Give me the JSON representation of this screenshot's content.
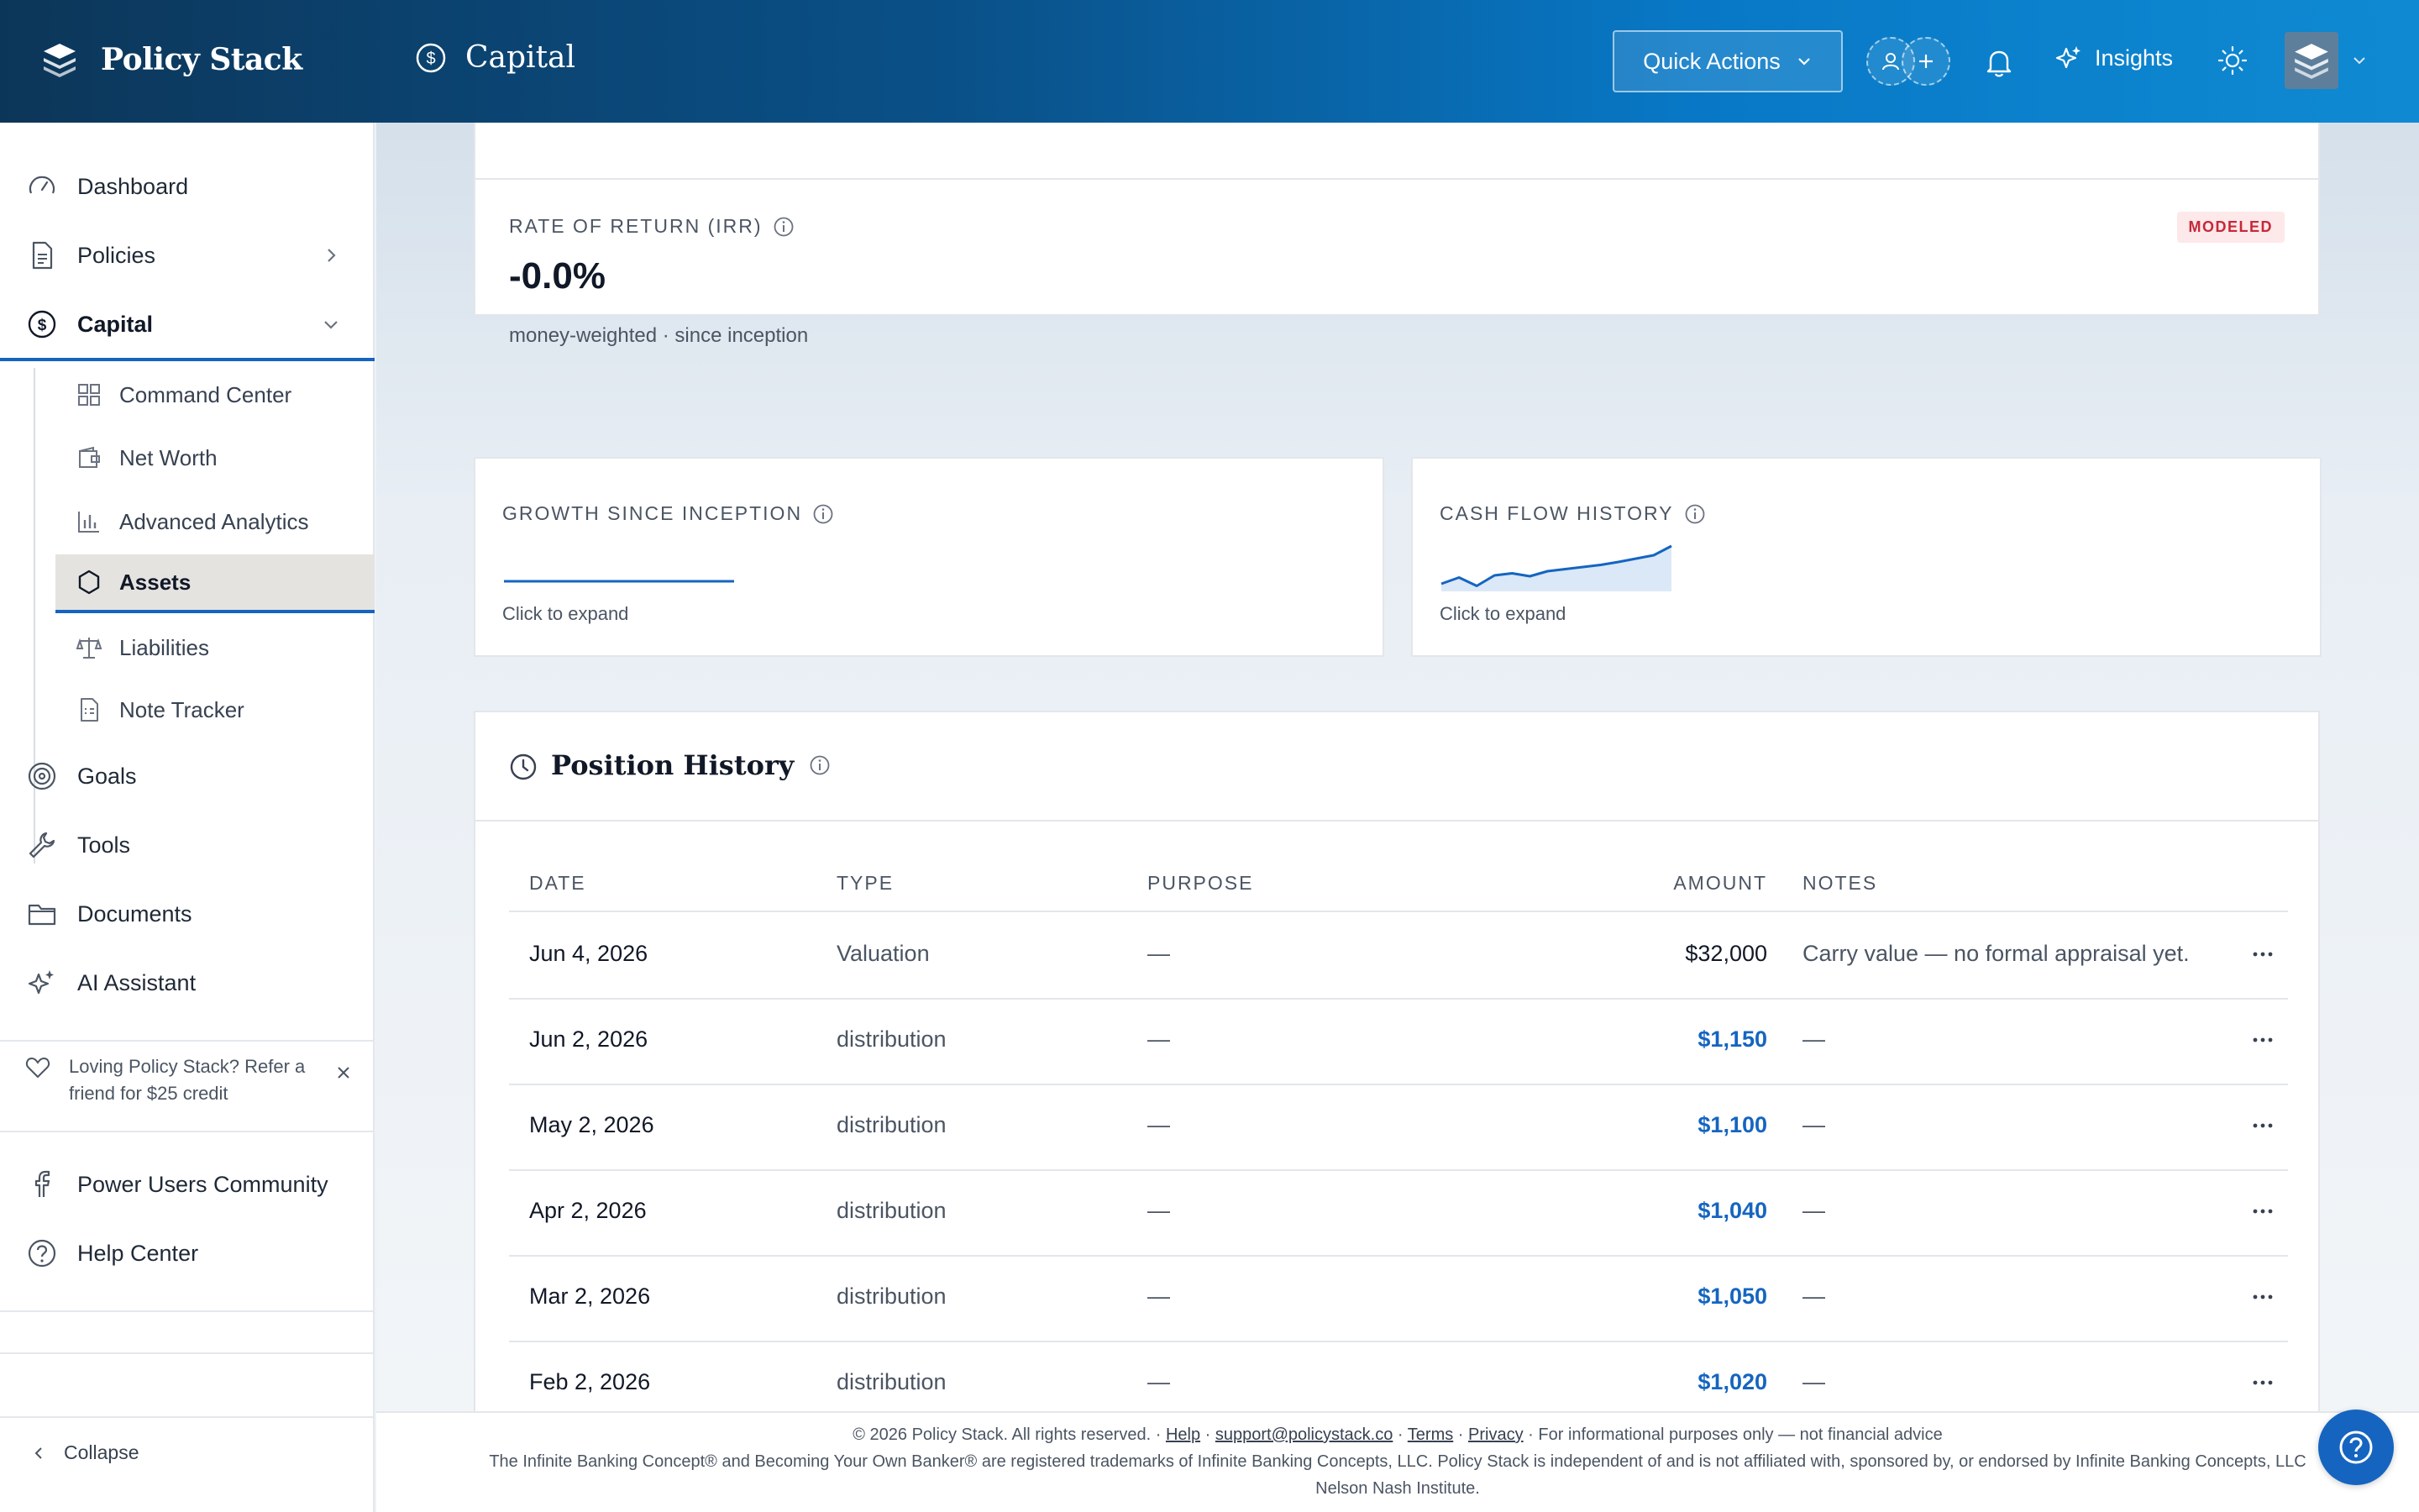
{
  "brand": {
    "name": "Policy Stack"
  },
  "header": {
    "section": "Capital",
    "quick_actions": "Quick Actions",
    "insights": "Insights"
  },
  "sidebar": {
    "items": [
      {
        "label": "Dashboard",
        "icon": "gauge-icon"
      },
      {
        "label": "Policies",
        "icon": "document-icon"
      },
      {
        "label": "Capital",
        "icon": "dollar-icon"
      },
      {
        "label": "Goals",
        "icon": "target-icon"
      },
      {
        "label": "Tools",
        "icon": "wrench-icon"
      },
      {
        "label": "Documents",
        "icon": "folder-icon"
      },
      {
        "label": "AI Assistant",
        "icon": "sparkles-icon"
      }
    ],
    "sub_items": [
      {
        "label": "Command Center",
        "icon": "grid-icon"
      },
      {
        "label": "Net Worth",
        "icon": "wallet-icon"
      },
      {
        "label": "Advanced Analytics",
        "icon": "bar-chart-icon"
      },
      {
        "label": "Assets",
        "icon": "hexagon-icon"
      },
      {
        "label": "Liabilities",
        "icon": "scale-icon"
      },
      {
        "label": "Note Tracker",
        "icon": "note-icon"
      }
    ],
    "refer": "Loving Policy Stack? Refer a friend for $25 credit",
    "community": "Power Users Community",
    "help_center": "Help Center",
    "collapse": "Collapse"
  },
  "irr": {
    "label": "RATE OF RETURN (IRR)",
    "value": "-0.0%",
    "sub": "money-weighted · since inception",
    "badge": "MODELED"
  },
  "growth": {
    "label": "GROWTH SINCE INCEPTION",
    "expand": "Click to expand"
  },
  "cashflow": {
    "label": "CASH FLOW HISTORY",
    "expand": "Click to expand",
    "spark": [
      0.1,
      0.25,
      0.05,
      0.3,
      0.35,
      0.28,
      0.4,
      0.45,
      0.5,
      0.55,
      0.62,
      0.7,
      0.78,
      1.0
    ]
  },
  "position_history": {
    "title": "Position History",
    "columns": {
      "date": "DATE",
      "type": "TYPE",
      "purpose": "PURPOSE",
      "amount": "AMOUNT",
      "notes": "NOTES"
    },
    "rows": [
      {
        "date": "Jun 4, 2026",
        "type": "Valuation",
        "purpose": "—",
        "amount": "$32,000",
        "notes": "Carry value — no formal appraisal yet."
      },
      {
        "date": "Jun 2, 2026",
        "type": "distribution",
        "purpose": "—",
        "amount": "$1,150",
        "notes": "—"
      },
      {
        "date": "May 2, 2026",
        "type": "distribution",
        "purpose": "—",
        "amount": "$1,100",
        "notes": "—"
      },
      {
        "date": "Apr 2, 2026",
        "type": "distribution",
        "purpose": "—",
        "amount": "$1,040",
        "notes": "—"
      },
      {
        "date": "Mar 2, 2026",
        "type": "distribution",
        "purpose": "—",
        "amount": "$1,050",
        "notes": "—"
      },
      {
        "date": "Feb 2, 2026",
        "type": "distribution",
        "purpose": "—",
        "amount": "$1,020",
        "notes": "—"
      }
    ]
  },
  "footer": {
    "copyright": "© 2026 Policy Stack. All rights reserved.",
    "help": "Help",
    "email": "support@policystack.co",
    "terms": "Terms",
    "privacy": "Privacy",
    "disclaimer": "For informational purposes only — not financial advice",
    "trademark_line1": "The Infinite Banking Concept® and Becoming Your Own Banker® are registered trademarks of Infinite Banking Concepts, LLC. Policy Stack is independent of and is not affiliated with, sponsored by, or endorsed by Infinite Banking Concepts, LLC",
    "trademark_line2": "Nelson Nash Institute."
  },
  "colors": {
    "accent": "#1565c0",
    "badge_bg": "#fde8ea",
    "badge_text": "#c62839",
    "topbar": "#0a5189"
  }
}
